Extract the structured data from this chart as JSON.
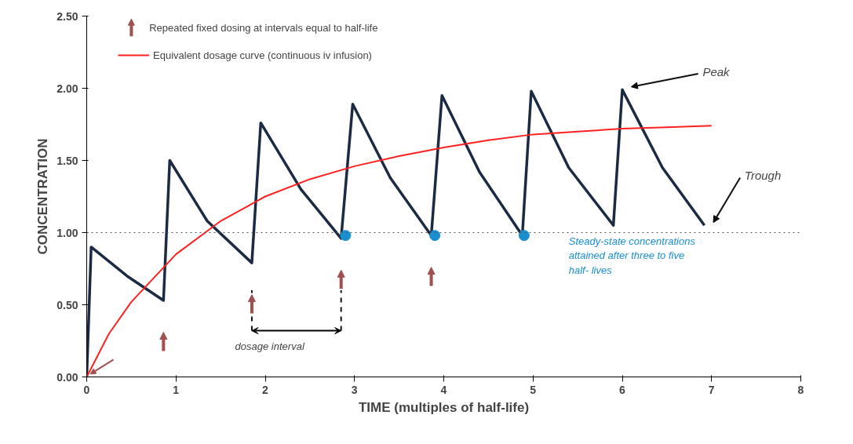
{
  "chart_data": {
    "type": "line",
    "xlabel": "TIME (multiples of half-life)",
    "ylabel": "CONCENTRATION",
    "series": [
      {
        "color": "#1c2b44",
        "x": [
          0,
          0.05,
          0.45,
          0.86,
          0.93,
          1.35,
          1.85,
          1.95,
          2.4,
          2.85,
          2.98,
          3.4,
          3.86,
          3.98,
          4.4,
          4.88,
          4.98,
          5.4,
          5.9,
          6.0,
          6.45,
          6.92
        ],
        "values": [
          0,
          0.9,
          0.7,
          0.53,
          1.5,
          1.08,
          0.79,
          1.76,
          1.3,
          0.96,
          1.89,
          1.38,
          0.98,
          1.95,
          1.42,
          0.98,
          1.98,
          1.45,
          1.05,
          1.99,
          1.45,
          1.05
        ]
      },
      {
        "name": "Equivalent dosage curve (continuous iv infusion)",
        "color": "#ff2020",
        "x": [
          0,
          0.25,
          0.5,
          1,
          1.5,
          2,
          2.5,
          3,
          3.5,
          4,
          4.5,
          5,
          5.5,
          6,
          6.5,
          7
        ],
        "values": [
          0,
          0.3,
          0.52,
          0.85,
          1.08,
          1.25,
          1.37,
          1.46,
          1.53,
          1.59,
          1.64,
          1.68,
          1.7,
          1.72,
          1.73,
          1.74
        ]
      },
      {
        "type": "scatter",
        "marker": "circle",
        "color": "#1a8fd0",
        "x": [
          2.9,
          3.9,
          4.9
        ],
        "values": [
          0.98,
          0.98,
          0.98
        ]
      }
    ],
    "xlim": [
      0,
      8
    ],
    "xticks": [
      0,
      1,
      2,
      3,
      4,
      5,
      6,
      7,
      8
    ],
    "ylim": [
      0,
      2.5
    ],
    "yticks": [
      {
        "value": 0,
        "label": "0.00"
      },
      {
        "value": 0.5,
        "label": "0.50"
      },
      {
        "value": 1,
        "label": "1.00"
      },
      {
        "value": 1.5,
        "label": "1.50"
      },
      {
        "value": 2,
        "label": "2.00"
      },
      {
        "value": 2.5,
        "label": "2.50"
      }
    ],
    "ref_lines": [
      {
        "axis": "y",
        "value": 1.0,
        "color": "#555555",
        "line_style": "dotted"
      }
    ],
    "annotations": [
      "Peak",
      "Trough",
      "Steady-state concentrations attained after three to five half- lives",
      "dosage interval",
      "Repeated fixed dosing at intervals equal to half-life"
    ],
    "grid": false,
    "legend": "top left"
  }
}
